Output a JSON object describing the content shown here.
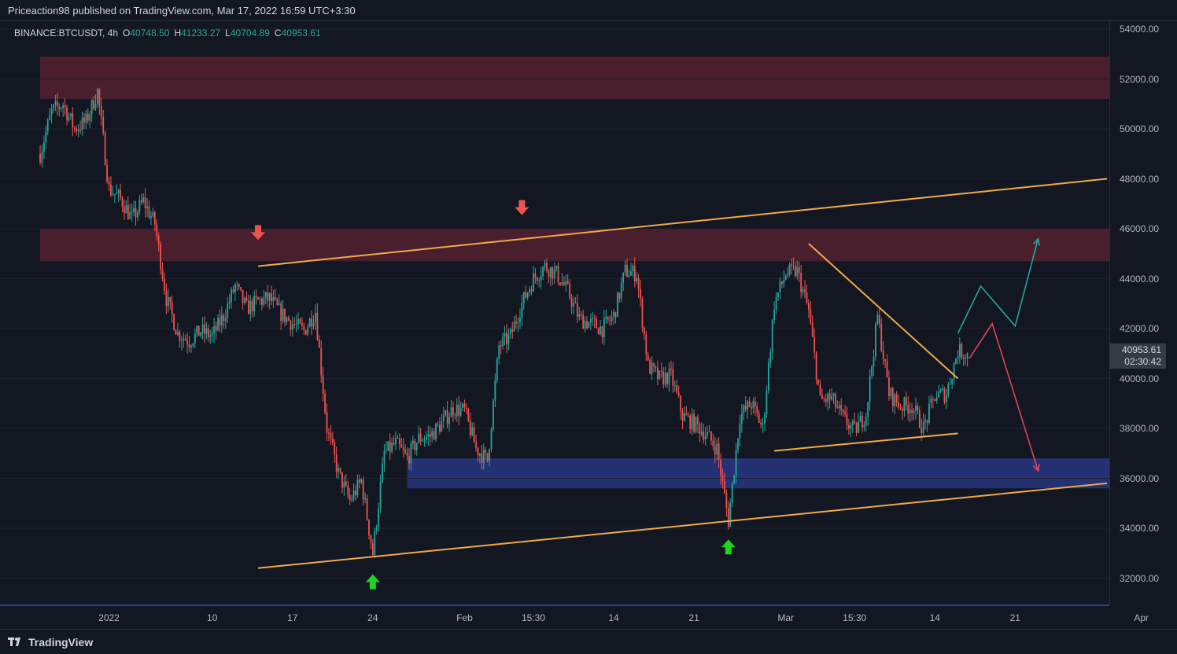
{
  "header": {
    "publisher_text": "Priceaction98 published on TradingView.com, Mar 17, 2022 16:59 UTC+3:30"
  },
  "symbol_bar": {
    "symbol": "BINANCE:BTCUSDT, 4h",
    "open_label": "O",
    "open_value": "40748.50",
    "high_label": "H",
    "high_value": "41233.27",
    "low_label": "L",
    "low_value": "40704.89",
    "close_label": "C",
    "close_value": "40953.61"
  },
  "last_price": {
    "value": "40953.61",
    "countdown": "02:30:42"
  },
  "footer": {
    "brand": "TradingView"
  },
  "colors": {
    "background": "#131722",
    "resistance_zone": "#4a1f2d",
    "support_zone": "#243273",
    "up_candle": "#26a69a",
    "down_candle": "#ef5350",
    "trendline": "#f0a94a",
    "bull_projection": "#26a69a",
    "bear_projection": "#e0425c",
    "down_arrow": "#ef5350",
    "up_arrow": "#1fd41f"
  },
  "chart_data": {
    "type": "candlestick",
    "timeframe": "4h",
    "y_axis_ticks": [
      "54000.00",
      "52000.00",
      "50000.00",
      "48000.00",
      "46000.00",
      "44000.00",
      "42000.00",
      "40000.00",
      "38000.00",
      "36000.00",
      "34000.00",
      "32000.00"
    ],
    "ylim": [
      31000,
      54600
    ],
    "x_axis_ticks": [
      "2022",
      "10",
      "17",
      "24",
      "Feb",
      "15:30",
      "14",
      "21",
      "Mar",
      "15:30",
      "14",
      "21",
      "Apr"
    ],
    "x_tick_dates": [
      "2022-01-01",
      "2022-01-10",
      "2022-01-17",
      "2022-01-24",
      "2022-02-01",
      "2022-02-07",
      "2022-02-14",
      "2022-02-21",
      "2022-03-01",
      "2022-03-07",
      "2022-03-14",
      "2022-03-21",
      "2022-04-01"
    ],
    "price_path": [
      [
        "2021-12-26",
        49000
      ],
      [
        "2021-12-27",
        50700
      ],
      [
        "2021-12-28",
        51000
      ],
      [
        "2021-12-29",
        50000
      ],
      [
        "2021-12-30",
        50300
      ],
      [
        "2021-12-31",
        51500
      ],
      [
        "2022-01-01",
        47600
      ],
      [
        "2022-01-02",
        47200
      ],
      [
        "2022-01-03",
        46400
      ],
      [
        "2022-01-04",
        47100
      ],
      [
        "2022-01-05",
        46200
      ],
      [
        "2022-01-06",
        43200
      ],
      [
        "2022-01-07",
        41800
      ],
      [
        "2022-01-08",
        41500
      ],
      [
        "2022-01-09",
        41900
      ],
      [
        "2022-01-10",
        41700
      ],
      [
        "2022-01-11",
        42500
      ],
      [
        "2022-01-12",
        43700
      ],
      [
        "2022-01-13",
        42800
      ],
      [
        "2022-01-14",
        43100
      ],
      [
        "2022-01-15",
        43200
      ],
      [
        "2022-01-16",
        42600
      ],
      [
        "2022-01-17",
        42200
      ],
      [
        "2022-01-18",
        41900
      ],
      [
        "2022-01-19",
        42700
      ],
      [
        "2022-01-20",
        38000
      ],
      [
        "2022-01-21",
        36200
      ],
      [
        "2022-01-22",
        35100
      ],
      [
        "2022-01-23",
        35900
      ],
      [
        "2022-01-24",
        33000
      ],
      [
        "2022-01-25",
        37000
      ],
      [
        "2022-01-26",
        37400
      ],
      [
        "2022-01-27",
        36800
      ],
      [
        "2022-01-28",
        37600
      ],
      [
        "2022-01-29",
        37700
      ],
      [
        "2022-01-30",
        38200
      ],
      [
        "2022-01-31",
        38800
      ],
      [
        "2022-02-01",
        38700
      ],
      [
        "2022-02-02",
        37200
      ],
      [
        "2022-02-03",
        36700
      ],
      [
        "2022-02-04",
        41300
      ],
      [
        "2022-02-05",
        41700
      ],
      [
        "2022-02-06",
        43000
      ],
      [
        "2022-02-07",
        44000
      ],
      [
        "2022-02-08",
        44500
      ],
      [
        "2022-02-09",
        44200
      ],
      [
        "2022-02-10",
        43500
      ],
      [
        "2022-02-11",
        42400
      ],
      [
        "2022-02-12",
        42200
      ],
      [
        "2022-02-13",
        42000
      ],
      [
        "2022-02-14",
        42500
      ],
      [
        "2022-02-15",
        44300
      ],
      [
        "2022-02-16",
        44200
      ],
      [
        "2022-02-17",
        40500
      ],
      [
        "2022-02-18",
        40000
      ],
      [
        "2022-02-19",
        40100
      ],
      [
        "2022-02-20",
        38500
      ],
      [
        "2022-02-21",
        38200
      ],
      [
        "2022-02-22",
        37800
      ],
      [
        "2022-02-23",
        37200
      ],
      [
        "2022-02-24",
        34300
      ],
      [
        "2022-02-25",
        38500
      ],
      [
        "2022-02-26",
        39000
      ],
      [
        "2022-02-27",
        38000
      ],
      [
        "2022-02-28",
        43000
      ],
      [
        "2022-03-01",
        44200
      ],
      [
        "2022-03-02",
        44300
      ],
      [
        "2022-03-03",
        42700
      ],
      [
        "2022-03-04",
        39100
      ],
      [
        "2022-03-05",
        39200
      ],
      [
        "2022-03-06",
        38400
      ],
      [
        "2022-03-07",
        37900
      ],
      [
        "2022-03-08",
        38600
      ],
      [
        "2022-03-09",
        42500
      ],
      [
        "2022-03-10",
        39400
      ],
      [
        "2022-03-11",
        38900
      ],
      [
        "2022-03-12",
        38900
      ],
      [
        "2022-03-13",
        38000
      ],
      [
        "2022-03-14",
        39300
      ],
      [
        "2022-03-15",
        39400
      ],
      [
        "2022-03-16",
        41100
      ],
      [
        "2022-03-17",
        40953.61
      ]
    ],
    "zones": [
      {
        "role": "resistance",
        "y_low": 51200,
        "y_high": 52900,
        "x_from": "2021-12-26",
        "x_to": "2022-04-02"
      },
      {
        "role": "resistance",
        "y_low": 44700,
        "y_high": 46000,
        "x_from": "2021-12-26",
        "x_to": "2022-04-02"
      },
      {
        "role": "support",
        "y_low": 35600,
        "y_high": 36800,
        "x_from": "2022-01-27",
        "x_to": "2022-04-02"
      }
    ],
    "trendlines": [
      {
        "role": "channel-top",
        "from": [
          "2022-01-14",
          44500
        ],
        "to": [
          "2022-03-29",
          48000
        ]
      },
      {
        "role": "channel-bottom",
        "from": [
          "2022-01-14",
          32400
        ],
        "to": [
          "2022-03-29",
          35800
        ]
      },
      {
        "role": "triangle-top",
        "from": [
          "2022-03-03",
          45400
        ],
        "to": [
          "2022-03-16",
          40000
        ]
      },
      {
        "role": "triangle-bottom",
        "from": [
          "2022-02-28",
          37100
        ],
        "to": [
          "2022-03-16",
          37800
        ]
      }
    ],
    "projections": [
      {
        "direction": "bullish",
        "points": [
          [
            "2022-03-16",
            41800
          ],
          [
            "2022-03-18",
            43700
          ],
          [
            "2022-03-21",
            42100
          ],
          [
            "2022-03-23",
            45600
          ]
        ]
      },
      {
        "direction": "bearish",
        "points": [
          [
            "2022-03-17",
            40800
          ],
          [
            "2022-03-19",
            42200
          ],
          [
            "2022-03-23",
            36300
          ]
        ]
      }
    ],
    "markers": [
      {
        "type": "arrow-down",
        "x": "2022-01-14",
        "y": 45800
      },
      {
        "type": "arrow-down",
        "x": "2022-02-06",
        "y": 46800
      },
      {
        "type": "arrow-up",
        "x": "2022-01-24",
        "y": 31900
      },
      {
        "type": "arrow-up",
        "x": "2022-02-24",
        "y": 33300
      }
    ]
  }
}
